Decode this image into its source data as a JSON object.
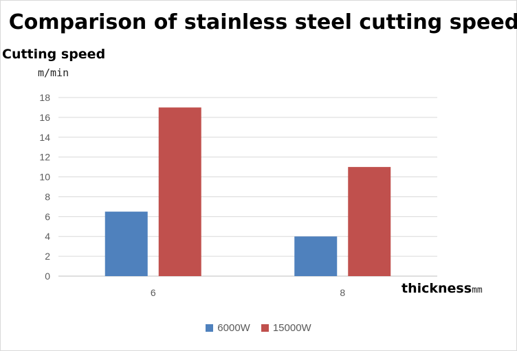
{
  "chart_data": {
    "type": "bar",
    "title": "Comparison of stainless steel cutting speed",
    "ylabel": "Cutting speed",
    "yunit": "m/min",
    "xlabel": "thickness",
    "xunit": "mm",
    "categories": [
      "6",
      "8"
    ],
    "series": [
      {
        "name": "6000W",
        "color": "#4f81bd",
        "values": [
          6.5,
          4
        ]
      },
      {
        "name": "15000W",
        "color": "#c0504d",
        "values": [
          17,
          11
        ]
      }
    ],
    "ylim": [
      0,
      18
    ],
    "yticks": [
      0,
      2,
      4,
      6,
      8,
      10,
      12,
      14,
      16,
      18
    ],
    "grid": true,
    "legend_position": "bottom"
  }
}
